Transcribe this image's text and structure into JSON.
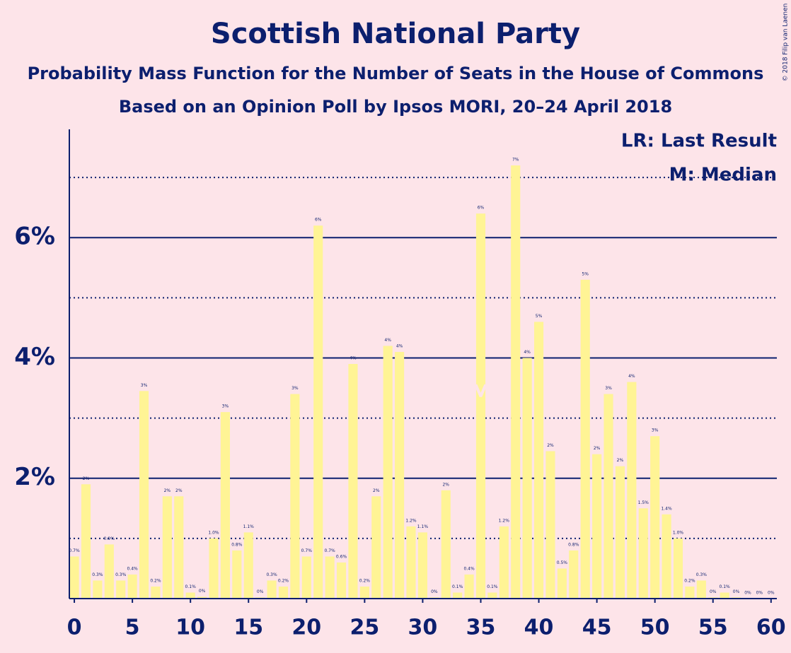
{
  "chart_data": {
    "type": "bar",
    "title": "Scottish National Party",
    "subtitle": "Probability Mass Function for the Number of Seats in the House of Commons",
    "subtitle2": "Based on an Opinion Poll by Ipsos MORI, 20–24 April 2018",
    "copyright": "© 2018 Filip van Laenen",
    "legend": [
      "LR: Last Result",
      "M: Median"
    ],
    "median": {
      "x": 35,
      "label": "M"
    },
    "color": "#fff495",
    "axis_color": "#0c1f6e",
    "x": [
      0,
      1,
      2,
      3,
      4,
      5,
      6,
      7,
      8,
      9,
      10,
      11,
      12,
      13,
      14,
      15,
      16,
      17,
      18,
      19,
      20,
      21,
      22,
      23,
      24,
      25,
      26,
      27,
      28,
      29,
      30,
      31,
      32,
      33,
      34,
      35,
      36,
      37,
      38,
      39,
      40,
      41,
      42,
      43,
      44,
      45,
      46,
      47,
      48,
      49,
      50,
      51,
      52,
      53,
      54,
      55,
      56,
      57,
      58,
      59,
      60
    ],
    "values": [
      0.7,
      1.9,
      0.3,
      0.9,
      0.3,
      0.4,
      3.45,
      0.2,
      1.7,
      1.7,
      0.1,
      0.03,
      1.0,
      3.1,
      0.8,
      1.1,
      0.02,
      0.3,
      0.2,
      3.4,
      0.7,
      6.2,
      0.7,
      0.6,
      3.9,
      0.2,
      1.7,
      4.2,
      4.1,
      1.2,
      1.1,
      0.02,
      1.8,
      0.1,
      0.4,
      6.4,
      0.1,
      1.2,
      7.2,
      4.0,
      4.6,
      2.45,
      0.5,
      0.8,
      5.3,
      2.4,
      3.4,
      2.2,
      3.6,
      1.5,
      2.7,
      1.4,
      1.0,
      0.2,
      0.3,
      0.02,
      0.1,
      0.02,
      0,
      0,
      0
    ],
    "value_labels": [
      "0.7%",
      "2%",
      "0.3%",
      "0.9%",
      "0.3%",
      "0.4%",
      "3%",
      "0.2%",
      "2%",
      "2%",
      "0.1%",
      "0%",
      "1.0%",
      "3%",
      "0.8%",
      "1.1%",
      "0%",
      "0.3%",
      "0.2%",
      "3%",
      "0.7%",
      "6%",
      "0.7%",
      "0.6%",
      "4%",
      "0.2%",
      "2%",
      "4%",
      "4%",
      "1.2%",
      "1.1%",
      "0%",
      "2%",
      "0.1%",
      "0.4%",
      "6%",
      "0.1%",
      "1.2%",
      "7%",
      "4%",
      "5%",
      "2%",
      "0.5%",
      "0.8%",
      "5%",
      "2%",
      "3%",
      "2%",
      "4%",
      "1.5%",
      "3%",
      "1.4%",
      "1.0%",
      "0.2%",
      "0.3%",
      "0%",
      "0.1%",
      "0%",
      "0%",
      "0%",
      "0%"
    ],
    "xlim": [
      -0.43,
      60.5
    ],
    "xticks": [
      0,
      5,
      10,
      15,
      20,
      25,
      30,
      35,
      40,
      45,
      50,
      55,
      60
    ],
    "ylim": [
      0,
      7.8
    ],
    "yticks": [
      {
        "value": 2,
        "label": "2%"
      },
      {
        "value": 4,
        "label": "4%"
      },
      {
        "value": 6,
        "label": "6%"
      }
    ],
    "grid": true,
    "minor_grid": true
  }
}
